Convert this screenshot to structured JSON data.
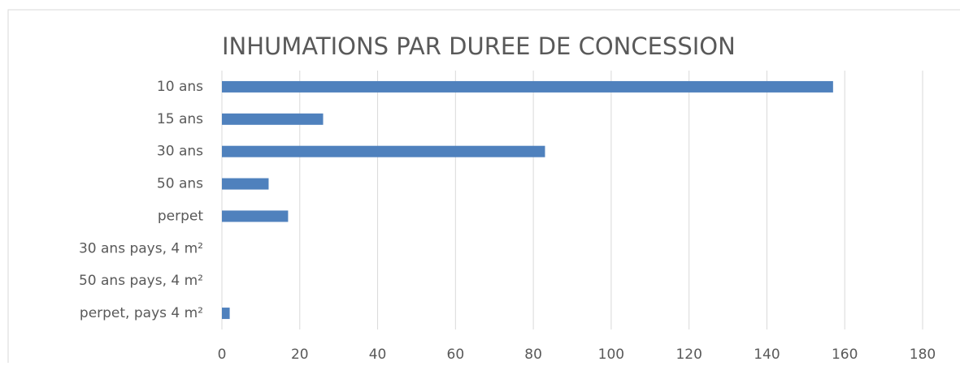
{
  "chart_data": {
    "type": "bar",
    "orientation": "horizontal",
    "title": "INHUMATIONS PAR DUREE DE CONCESSION",
    "categories": [
      "10 ans",
      "15 ans",
      "30 ans",
      "50 ans",
      "perpet",
      "30 ans pays, 4 m²",
      "50 ans pays, 4 m²",
      "perpet, pays 4 m²"
    ],
    "values": [
      157,
      26,
      83,
      12,
      17,
      0,
      0,
      2
    ],
    "color": "#4f81bd",
    "xlim": [
      0,
      180
    ],
    "xticks": [
      0,
      20,
      40,
      60,
      80,
      100,
      120,
      140,
      160,
      180
    ],
    "grid": true
  }
}
